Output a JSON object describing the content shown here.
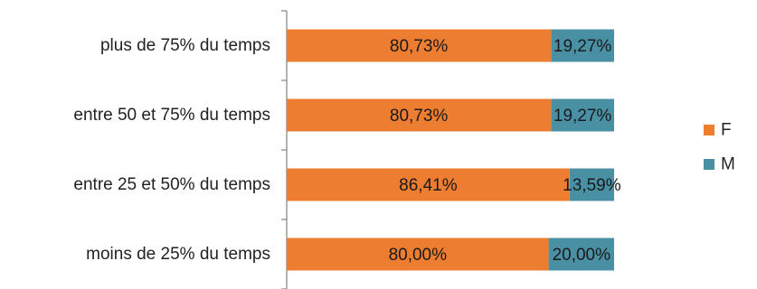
{
  "chart_data": {
    "type": "bar",
    "orientation": "horizontal",
    "stacked": "percent",
    "categories": [
      "plus de 75% du temps",
      "entre 50 et 75% du temps",
      "entre 25 et 50% du temps",
      "moins de 25% du temps"
    ],
    "series": [
      {
        "name": "F",
        "color": "#ED7D31",
        "values": [
          80.73,
          80.73,
          86.41,
          80.0
        ],
        "labels": [
          "80,73%",
          "80,73%",
          "86,41%",
          "80,00%"
        ]
      },
      {
        "name": "M",
        "color": "#4A90A4",
        "values": [
          19.27,
          19.27,
          13.59,
          20.0
        ],
        "labels": [
          "19,27%",
          "19,27%",
          "13,59%",
          "20,00%"
        ]
      }
    ],
    "xlim": [
      0,
      100
    ],
    "grid": false,
    "legend_position": "right"
  }
}
